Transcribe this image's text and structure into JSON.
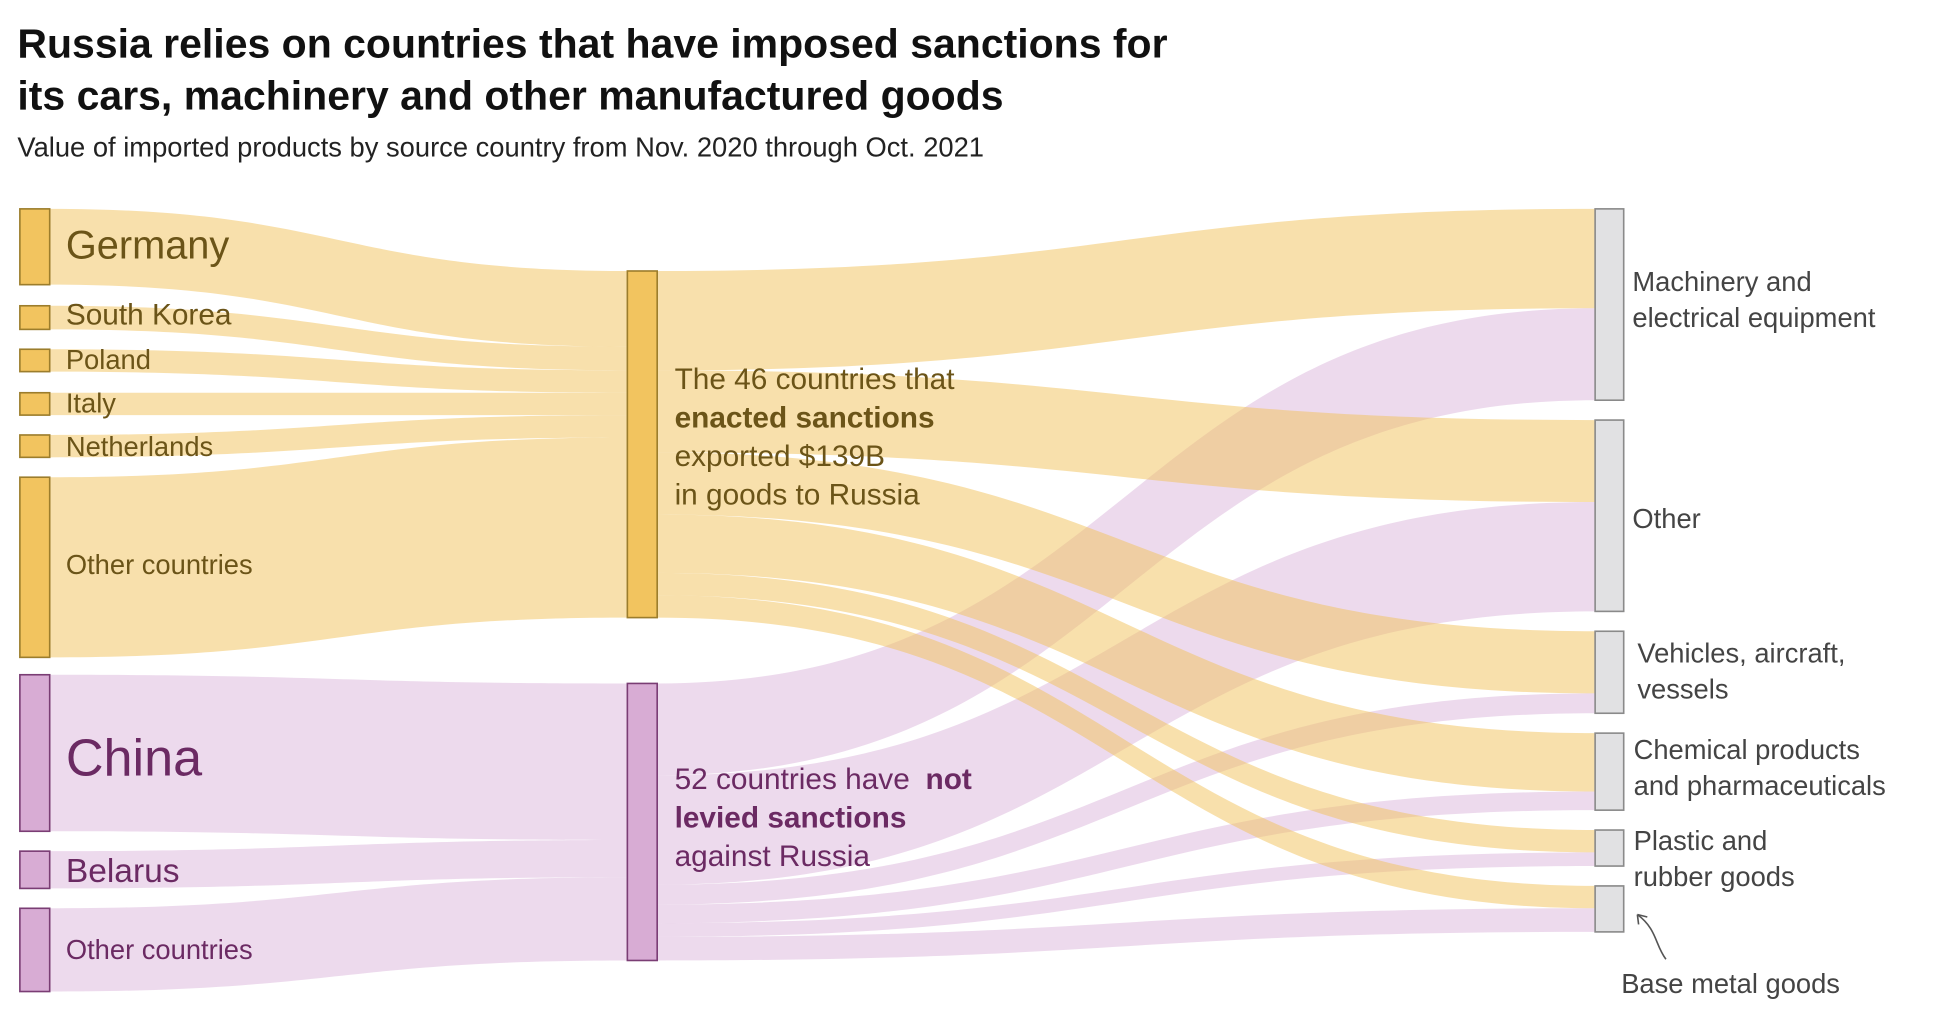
{
  "title_line1": "Russia relies on countries that have imposed sanctions for",
  "title_line2": "its cars, machinery and other manufactured goods",
  "subtitle": "Value of imported products by source country from Nov. 2020 through Oct. 2021",
  "colors": {
    "sanction": "#f2c45f",
    "nonsanction": "#d8acd4",
    "category": "#e1e1e3"
  },
  "chart_data": {
    "type": "sankey",
    "units": "billion USD (approx.)",
    "sources": [
      {
        "id": "germany",
        "label": "Germany",
        "group": "sanction",
        "value": 30.5
      },
      {
        "id": "south_korea",
        "label": "South Korea",
        "group": "sanction",
        "value": 9.5
      },
      {
        "id": "poland",
        "label": "Poland",
        "group": "sanction",
        "value": 9
      },
      {
        "id": "italy",
        "label": "Italy",
        "group": "sanction",
        "value": 9
      },
      {
        "id": "netherlands",
        "label": "Netherlands",
        "group": "sanction",
        "value": 9
      },
      {
        "id": "other_sanction",
        "label": "Other countries",
        "group": "sanction",
        "value": 72.5
      },
      {
        "id": "china",
        "label": "China",
        "group": "nonsanction",
        "value": 63
      },
      {
        "id": "belarus",
        "label": "Belarus",
        "group": "nonsanction",
        "value": 15
      },
      {
        "id": "other_nonsanction",
        "label": "Other countries",
        "group": "nonsanction",
        "value": 33.5
      }
    ],
    "groups": [
      {
        "id": "sanction",
        "line1": "The 46 countries that",
        "line2_bold": "enacted sanctions",
        "line3": "exported $139B",
        "line4": "in goods to Russia",
        "total": 139
      },
      {
        "id": "nonsanction",
        "line1": "52 countries have ",
        "line1_bold": "not",
        "line2_bold": "levied sanctions",
        "line3": "against Russia"
      }
    ],
    "categories": [
      {
        "id": "machinery",
        "line1": "Machinery and",
        "line2": "electrical equipment",
        "sanction": 40,
        "nonsanction": 37
      },
      {
        "id": "other",
        "line1": "Other",
        "line2": "",
        "sanction": 33,
        "nonsanction": 44
      },
      {
        "id": "vehicles",
        "line1": "Vehicles, aircraft,",
        "line2": "vessels",
        "sanction": 25,
        "nonsanction": 8
      },
      {
        "id": "chemical",
        "line1": "Chemical products",
        "line2": "and pharmaceuticals",
        "sanction": 23.5,
        "nonsanction": 7.5
      },
      {
        "id": "plastic",
        "line1": "Plastic and",
        "line2": "rubber goods",
        "sanction": 9,
        "nonsanction": 5.5
      },
      {
        "id": "base_metal",
        "line1": "Base metal goods",
        "line2": "",
        "sanction": 9,
        "nonsanction": 9.5
      }
    ]
  }
}
